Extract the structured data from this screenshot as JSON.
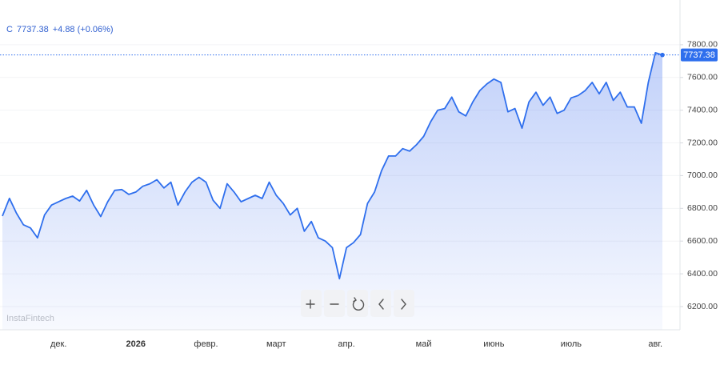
{
  "header": {
    "symbol": "C",
    "change": "+4.88 (+0.06%)"
  },
  "watermark": "InstaFintech",
  "chart_data": {
    "type": "area",
    "categories": [
      null,
      null,
      null,
      null,
      null,
      null,
      null,
      null,
      "дек.",
      null,
      null,
      null,
      null,
      null,
      null,
      null,
      null,
      null,
      null,
      "2026",
      null,
      null,
      null,
      null,
      null,
      null,
      null,
      null,
      null,
      "февр.",
      null,
      null,
      null,
      null,
      null,
      null,
      null,
      null,
      null,
      "март",
      null,
      null,
      null,
      null,
      null,
      null,
      null,
      null,
      null,
      "апр.",
      null,
      null,
      null,
      null,
      null,
      null,
      null,
      null,
      null,
      null,
      "май",
      null,
      null,
      null,
      null,
      null,
      null,
      null,
      null,
      null,
      "июнь",
      null,
      null,
      null,
      null,
      null,
      null,
      null,
      null,
      null,
      null,
      "июль",
      null,
      null,
      null,
      null,
      null,
      null,
      null,
      null,
      null,
      null,
      null,
      "авг.",
      null
    ],
    "series": [
      {
        "color": "#2f6fed",
        "values": [
          6753,
          6861,
          6770,
          6700,
          6680,
          6620,
          6760,
          6820,
          6840,
          6860,
          6875,
          6845,
          6910,
          6820,
          6750,
          6840,
          6910,
          6915,
          6885,
          6900,
          6935,
          6950,
          6975,
          6925,
          6960,
          6820,
          6900,
          6960,
          6990,
          6960,
          6850,
          6800,
          6950,
          6900,
          6840,
          6860,
          6880,
          6860,
          6960,
          6880,
          6830,
          6760,
          6800,
          6660,
          6720,
          6620,
          6600,
          6560,
          6370,
          6560,
          6590,
          6640,
          6830,
          6900,
          7030,
          7120,
          7120,
          7165,
          7150,
          7190,
          7240,
          7330,
          7400,
          7410,
          7480,
          7390,
          7365,
          7450,
          7520,
          7560,
          7590,
          7570,
          7390,
          7410,
          7290,
          7450,
          7510,
          7430,
          7480,
          7380,
          7400,
          7475,
          7490,
          7520,
          7570,
          7500,
          7570,
          7460,
          7510,
          7420,
          7420,
          7320,
          7570,
          7751,
          7737.38
        ]
      }
    ],
    "ylim": [
      6058,
      8000
    ],
    "yticks": [
      {
        "value": 6200,
        "label": "6200.00"
      },
      {
        "value": 6400,
        "label": "6400.00"
      },
      {
        "value": 6600,
        "label": "6600.00"
      },
      {
        "value": 6800,
        "label": "6800.00"
      },
      {
        "value": 7000,
        "label": "7000.00"
      },
      {
        "value": 7200,
        "label": "7200.00"
      },
      {
        "value": 7400,
        "label": "7400.00"
      },
      {
        "value": 7600,
        "label": "7600.00"
      },
      {
        "value": 7800,
        "label": "7800.00"
      }
    ],
    "grid": true
  }
}
